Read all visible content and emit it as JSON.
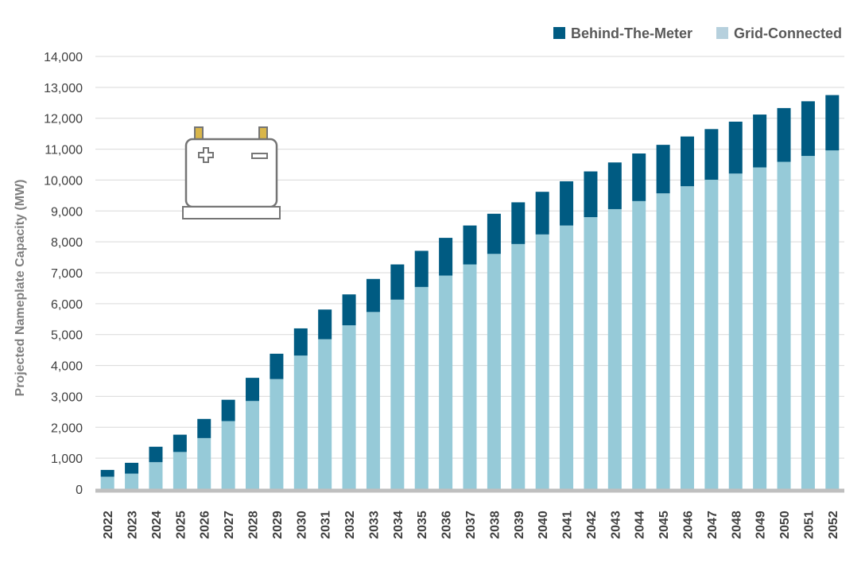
{
  "chart_data": {
    "type": "bar",
    "stacked": true,
    "categories": [
      "2022",
      "2023",
      "2024",
      "2025",
      "2026",
      "2027",
      "2028",
      "2029",
      "2030",
      "2031",
      "2032",
      "2033",
      "2034",
      "2035",
      "2036",
      "2037",
      "2038",
      "2039",
      "2040",
      "2041",
      "2042",
      "2043",
      "2044",
      "2045",
      "2046",
      "2047",
      "2048",
      "2049",
      "2050",
      "2051",
      "2052"
    ],
    "series": [
      {
        "name": "Grid-Connected",
        "color": "#96cad8",
        "legend_color": "#b6d0dd",
        "values": [
          400,
          500,
          870,
          1200,
          1650,
          2200,
          2850,
          3560,
          4320,
          4850,
          5300,
          5730,
          6130,
          6540,
          6910,
          7270,
          7610,
          7930,
          8240,
          8530,
          8800,
          9060,
          9320,
          9570,
          9800,
          10010,
          10210,
          10410,
          10590,
          10780,
          10960
        ]
      },
      {
        "name": "Behind-The-Meter",
        "color": "#005b82",
        "legend_color": "#005b82",
        "values": [
          220,
          350,
          500,
          560,
          620,
          690,
          750,
          820,
          880,
          960,
          1000,
          1070,
          1140,
          1170,
          1220,
          1260,
          1300,
          1350,
          1380,
          1430,
          1480,
          1510,
          1540,
          1570,
          1610,
          1640,
          1680,
          1710,
          1740,
          1770,
          1790
        ]
      }
    ],
    "ylabel": "Projected Nameplate Capacity (MW)",
    "xlabel": "",
    "title": "",
    "ylim": [
      0,
      14000
    ],
    "yticks": [
      0,
      1000,
      2000,
      3000,
      4000,
      5000,
      6000,
      7000,
      8000,
      9000,
      10000,
      11000,
      12000,
      13000,
      14000
    ],
    "ytick_labels": [
      "0",
      "1,000",
      "2,000",
      "3,000",
      "4,000",
      "5,000",
      "6,000",
      "7,000",
      "8,000",
      "9,000",
      "10,000",
      "11,000",
      "12,000",
      "13,000",
      "14,000"
    ],
    "grid": true,
    "legend_position": "top-right",
    "legend_order": [
      "Behind-The-Meter",
      "Grid-Connected"
    ],
    "axis_color": "#bfbfbf",
    "grid_color": "#d9d9d9"
  },
  "illustration": {
    "icon": "battery-icon",
    "terminal_color": "#d9b64a",
    "outline_color": "#757575"
  }
}
